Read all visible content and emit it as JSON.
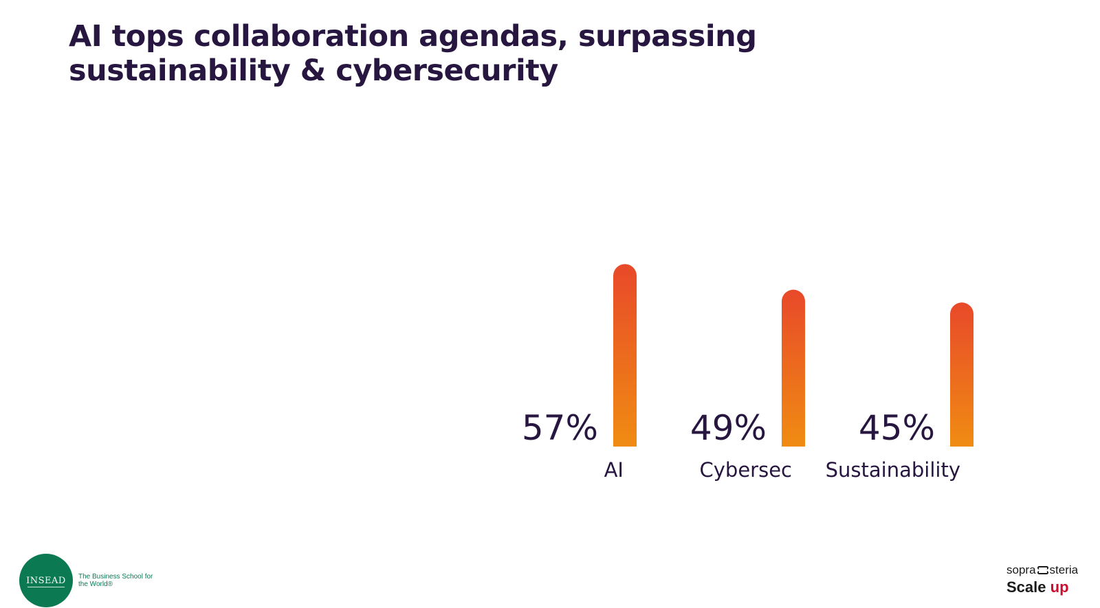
{
  "title": "AI tops collaboration agendas, surpassing sustainability & cybersecurity",
  "colors": {
    "title": "#261640",
    "bar_top": "#e8492a",
    "bar_bottom": "#f08c12",
    "divider": "#e0701e",
    "insead_green": "#0b7a52",
    "scale_up_accent": "#c8102e"
  },
  "chart_data": {
    "type": "bar",
    "categories": [
      "AI",
      "Cybersec",
      "Sustainability"
    ],
    "values": [
      57,
      49,
      45
    ],
    "value_labels": [
      "57%",
      "49%",
      "45%"
    ],
    "title": "",
    "xlabel": "",
    "ylabel": "",
    "ylim": [
      0,
      100
    ],
    "grid": false,
    "legend": "none"
  },
  "footer": {
    "insead_logo_text": "INSEAD",
    "insead_tagline": "The Business School for the World®",
    "sopra_left": "sopra",
    "sopra_right": "steria",
    "scale_text": "Scale",
    "up_text": "up"
  }
}
